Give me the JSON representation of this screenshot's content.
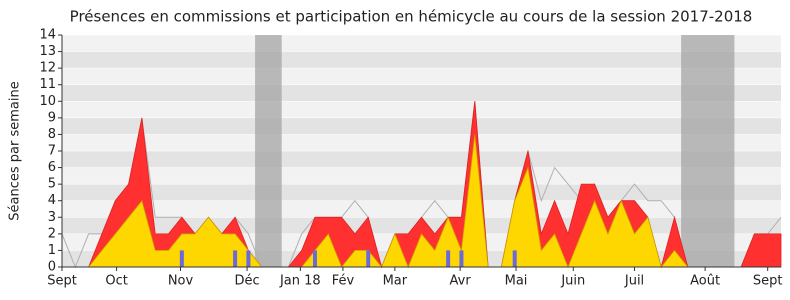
{
  "chart_data": {
    "type": "area",
    "title": "Présences en commissions et participation en hémicycle au cours de la session 2017-2018",
    "y_label": "Séances par semaine",
    "x": [
      0,
      1,
      2,
      3,
      4,
      5,
      6,
      7,
      8,
      9,
      10,
      11,
      12,
      13,
      14,
      15,
      16,
      17,
      18,
      19,
      20,
      21,
      22,
      23,
      24,
      25,
      26,
      27,
      28,
      29,
      30,
      31,
      32,
      33,
      34,
      35,
      36,
      37,
      38,
      39,
      40,
      41,
      42,
      43,
      44,
      45,
      46,
      47,
      48,
      49,
      50,
      51,
      52,
      53,
      54
    ],
    "series": [
      {
        "color": "#b0b0b0",
        "style": "line",
        "values": [
          2,
          0,
          2,
          2,
          4,
          5,
          9,
          3,
          3,
          3,
          2,
          3,
          2,
          3,
          2,
          0,
          0,
          0,
          2,
          3,
          3,
          3,
          4,
          3,
          0,
          2,
          2,
          3,
          4,
          3,
          3,
          10,
          0,
          0,
          4,
          7,
          4,
          6,
          5,
          4,
          5,
          3,
          4,
          5,
          4,
          4,
          3,
          0,
          0,
          0,
          0,
          0,
          2,
          2,
          3
        ]
      },
      {
        "color": "#ff3030",
        "style": "area",
        "values": [
          0,
          0,
          0,
          2,
          4,
          5,
          9,
          2,
          2,
          3,
          2,
          3,
          2,
          3,
          1,
          0,
          0,
          0,
          1,
          3,
          3,
          3,
          2,
          3,
          0,
          2,
          2,
          3,
          2,
          3,
          3,
          10,
          0,
          0,
          4,
          7,
          2,
          4,
          2,
          5,
          5,
          3,
          4,
          4,
          3,
          0,
          3,
          0,
          0,
          0,
          0,
          0,
          2,
          2,
          2
        ]
      },
      {
        "color": "#ffd700",
        "style": "area",
        "values": [
          0,
          0,
          0,
          1,
          2,
          3,
          4,
          1,
          1,
          2,
          2,
          3,
          2,
          2,
          1,
          0,
          0,
          0,
          0,
          1,
          2,
          0,
          1,
          1,
          0,
          2,
          0,
          2,
          1,
          3,
          1,
          8,
          0,
          0,
          4,
          6,
          1,
          2,
          0,
          2,
          4,
          2,
          4,
          2,
          3,
          0,
          1,
          0,
          0,
          0,
          0,
          0,
          0,
          0,
          0
        ]
      }
    ],
    "bars": {
      "color": "#6a6ad8",
      "x": [
        9,
        13,
        14,
        19,
        23,
        29,
        30,
        34
      ],
      "values": [
        1,
        1,
        1,
        1,
        1,
        1,
        1,
        1
      ]
    },
    "shaded_ranges": [
      [
        14.5,
        16.5
      ],
      [
        46.5,
        50.5
      ]
    ],
    "xlim": [
      0,
      54
    ],
    "ylim": [
      0,
      14
    ],
    "yticks": [
      0,
      1,
      2,
      3,
      4,
      5,
      6,
      7,
      8,
      9,
      10,
      11,
      12,
      13,
      14
    ],
    "xticks": [
      {
        "value": 0,
        "label": "Sept"
      },
      {
        "value": 4.1,
        "label": "Oct"
      },
      {
        "value": 8.9,
        "label": "Nov"
      },
      {
        "value": 13.9,
        "label": "Déc"
      },
      {
        "value": 17.9,
        "label": "Jan 18"
      },
      {
        "value": 21.1,
        "label": "Fév"
      },
      {
        "value": 25,
        "label": "Mar"
      },
      {
        "value": 29.9,
        "label": "Avr"
      },
      {
        "value": 34.1,
        "label": "Mai"
      },
      {
        "value": 38.4,
        "label": "Juin"
      },
      {
        "value": 43,
        "label": "Juil"
      },
      {
        "value": 48.3,
        "label": "Août"
      },
      {
        "value": 53,
        "label": "Sept"
      }
    ]
  }
}
